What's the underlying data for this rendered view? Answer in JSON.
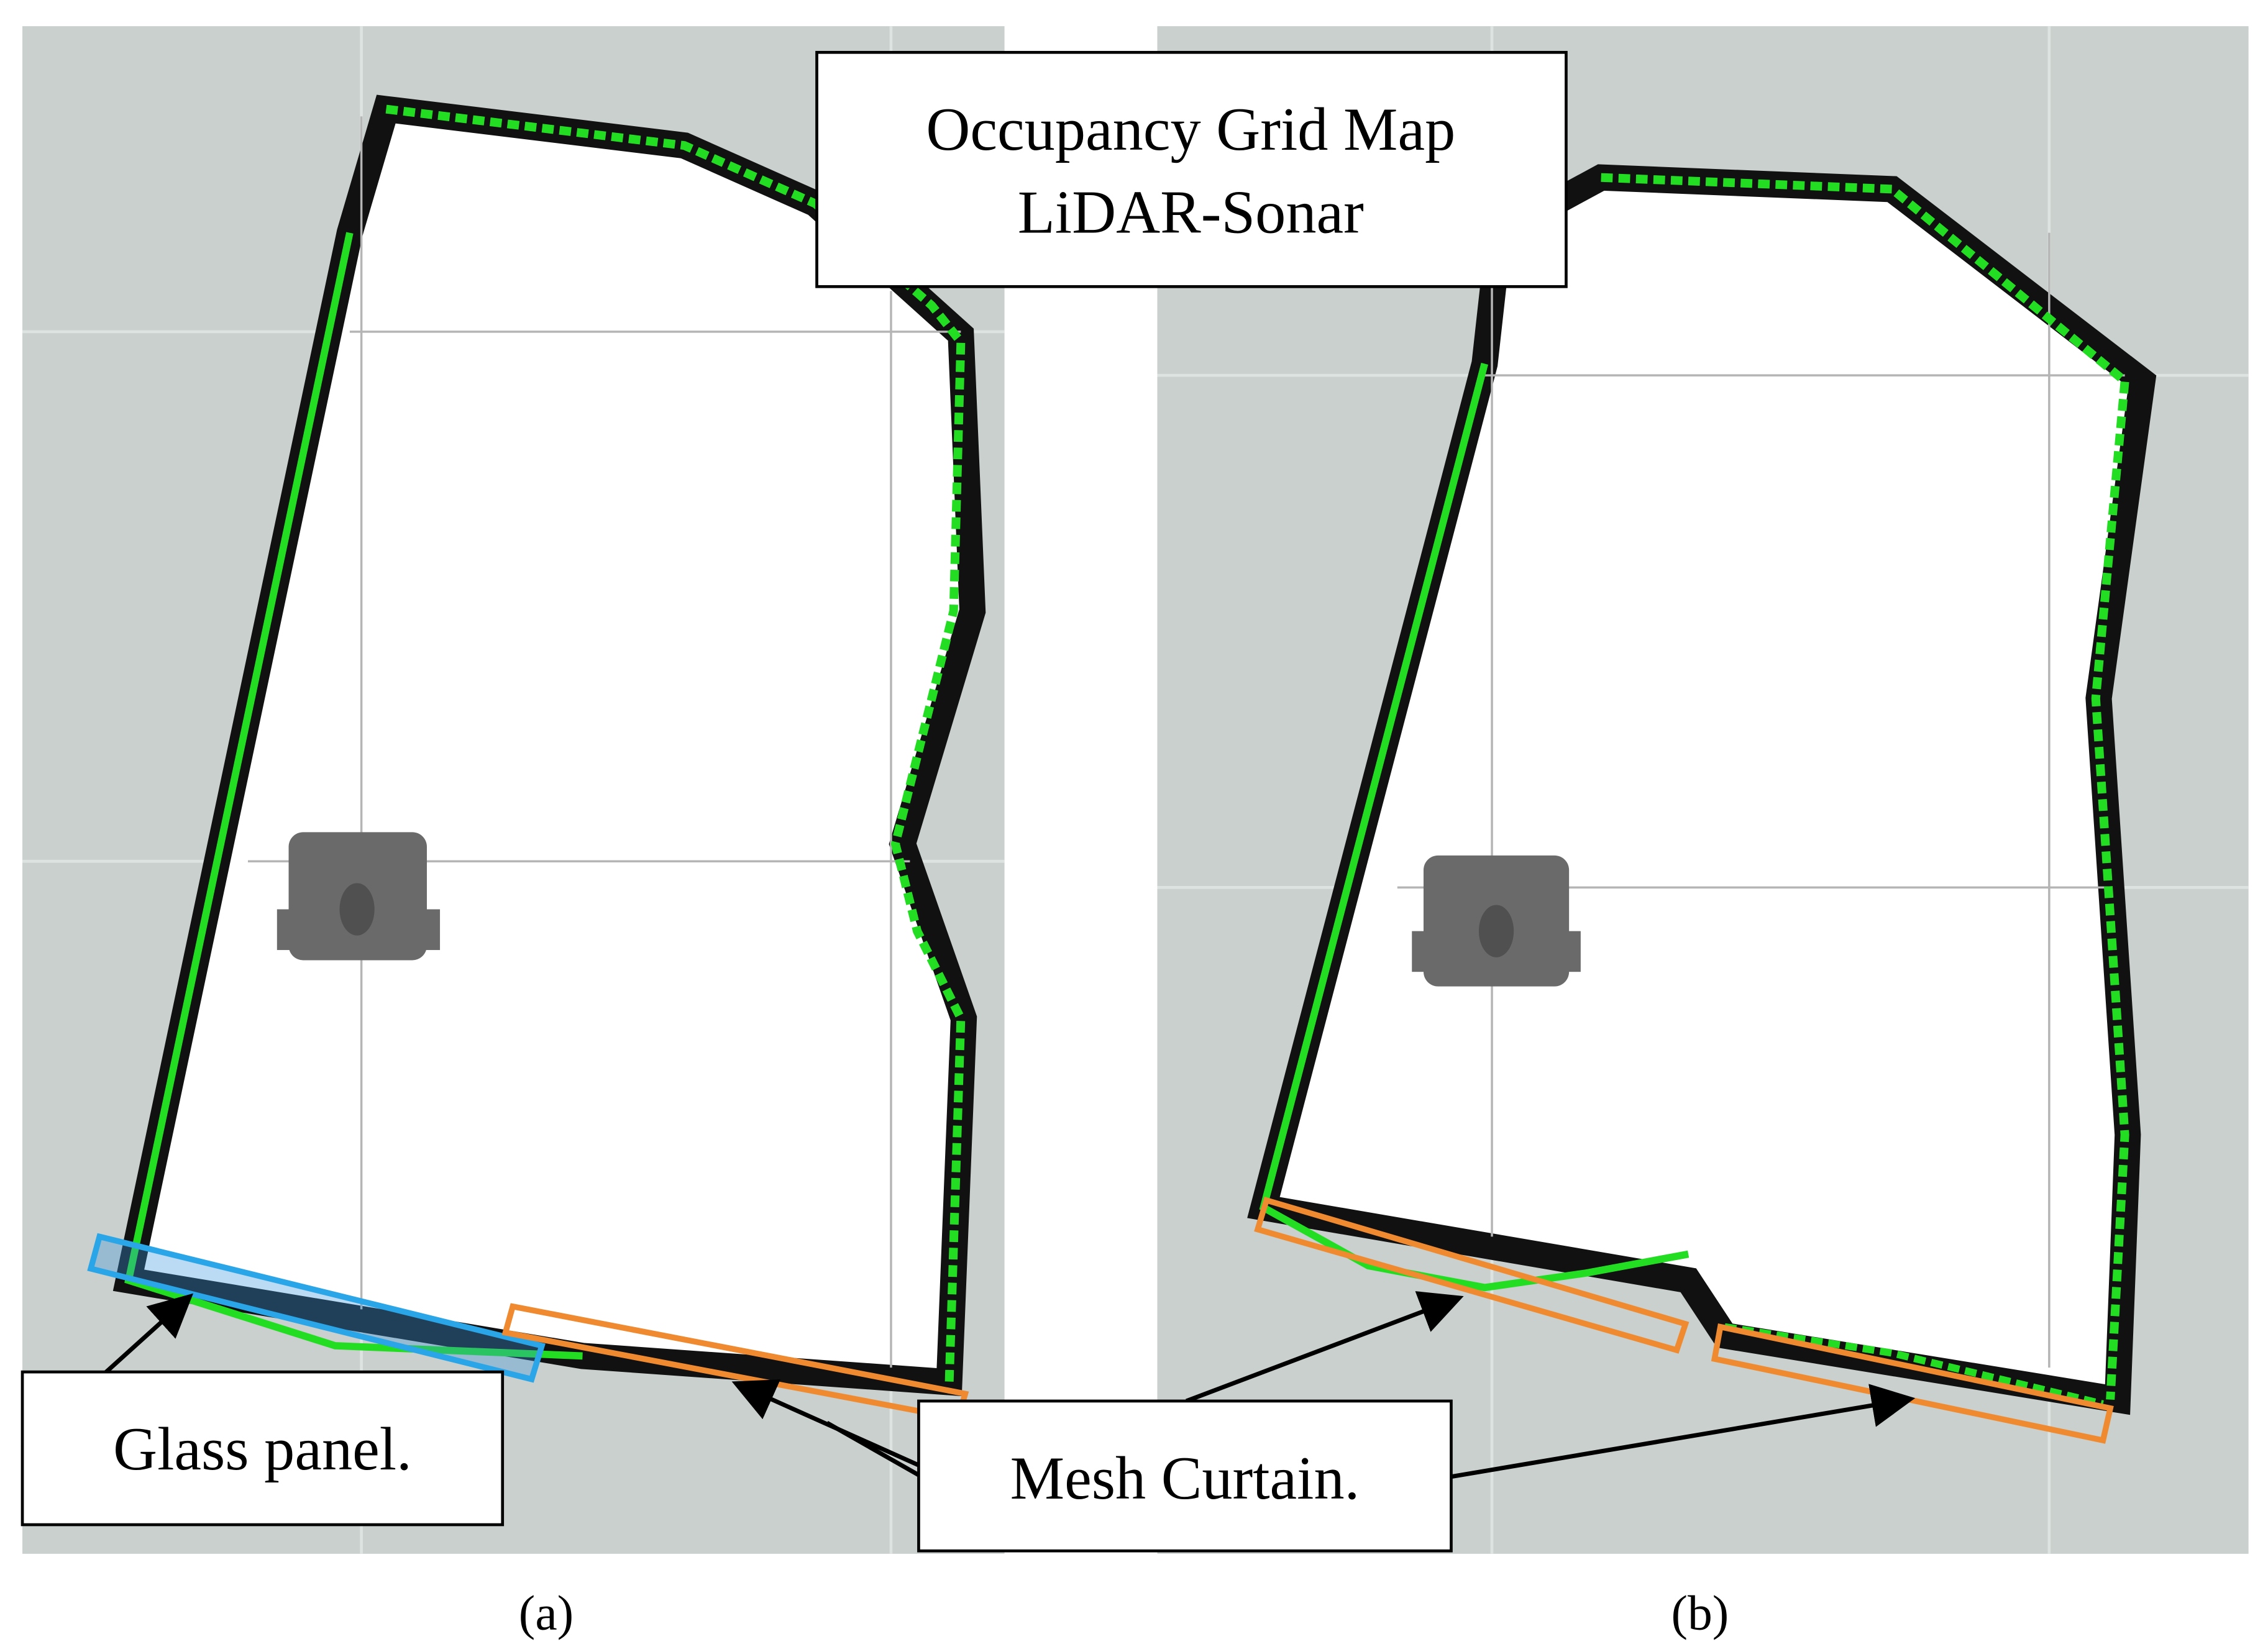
{
  "title": {
    "line1": "Occupancy Grid Map",
    "line2": "LiDAR-Sonar"
  },
  "annotations": {
    "glass": "Glass panel.",
    "mesh": "Mesh Curtain."
  },
  "captions": [
    "(a)",
    "(b)"
  ]
}
